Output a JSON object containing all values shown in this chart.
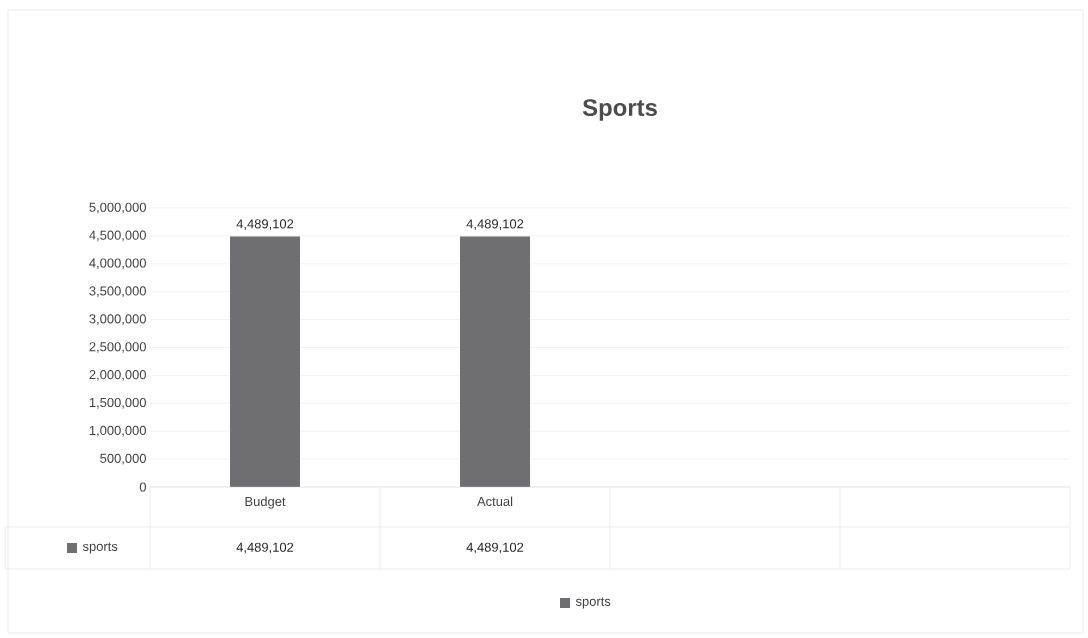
{
  "chart_data": {
    "type": "bar",
    "title": "Sports",
    "categories": [
      "Budget",
      "Actual",
      null,
      null
    ],
    "series": [
      {
        "name": "sports",
        "color": "#6e6e73",
        "values": [
          4489102,
          4489102,
          null,
          null
        ],
        "value_labels": [
          "4,489,102",
          "4,489,102",
          null,
          null
        ]
      }
    ],
    "ylim": [
      0,
      5000000
    ],
    "yticks": [
      {
        "value": 0,
        "label": "0"
      },
      {
        "value": 500000,
        "label": "500,000"
      },
      {
        "value": 1000000,
        "label": "1,000,000"
      },
      {
        "value": 1500000,
        "label": "1,500,000"
      },
      {
        "value": 2000000,
        "label": "2,000,000"
      },
      {
        "value": 2500000,
        "label": "2,500,000"
      },
      {
        "value": 3000000,
        "label": "3,000,000"
      },
      {
        "value": 3500000,
        "label": "3,500,000"
      },
      {
        "value": 4000000,
        "label": "4,000,000"
      },
      {
        "value": 4500000,
        "label": "4,500,000"
      },
      {
        "value": 5000000,
        "label": "5,000,000"
      }
    ],
    "grid": "y",
    "legend": "bottom"
  }
}
